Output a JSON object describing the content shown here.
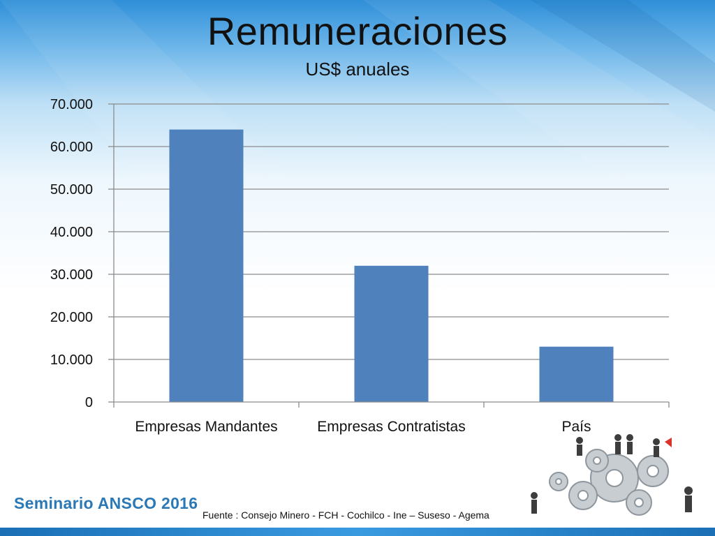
{
  "header": {
    "title": "Remuneraciones",
    "subtitle": "US$ anuales"
  },
  "chart_data": {
    "type": "bar",
    "categories": [
      "Empresas Mandantes",
      "Empresas Contratistas",
      "País"
    ],
    "values": [
      64000,
      32000,
      13000
    ],
    "ylim": [
      0,
      70000
    ],
    "yticks": [
      0,
      10000,
      20000,
      30000,
      40000,
      50000,
      60000,
      70000
    ],
    "ytick_labels": [
      "0",
      "10.000",
      "20.000",
      "30.000",
      "40.000",
      "50.000",
      "60.000",
      "70.000"
    ],
    "grid": true,
    "bar_color": "#4f81bd"
  },
  "footer": {
    "brand": "Seminario ANSCO 2016",
    "source": "Fuente : Consejo Minero - FCH - Cochilco - Ine – Suseso - Agema"
  },
  "illustration": {
    "icon": "gears-and-people-icon"
  }
}
